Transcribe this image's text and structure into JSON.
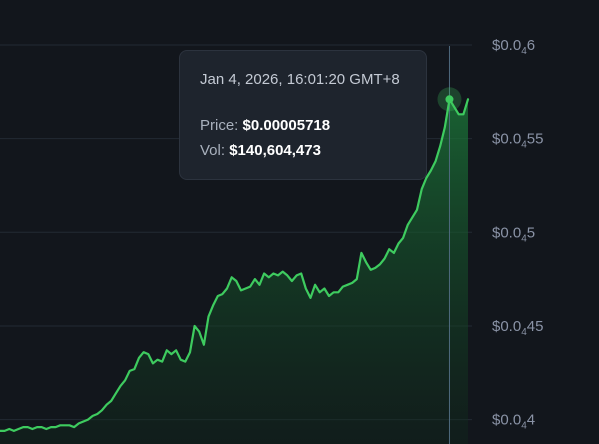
{
  "chart_data": {
    "type": "area",
    "y_tick_labels": [
      {
        "value": 6e-05,
        "base": "$0.0",
        "sub": "4",
        "rest": "6"
      },
      {
        "value": 5.5e-05,
        "base": "$0.0",
        "sub": "4",
        "rest": "55"
      },
      {
        "value": 5e-05,
        "base": "$0.0",
        "sub": "4",
        "rest": "5"
      },
      {
        "value": 4.5e-05,
        "base": "$0.0",
        "sub": "4",
        "rest": "45"
      },
      {
        "value": 4e-05,
        "base": "$0.0",
        "sub": "4",
        "rest": "4"
      }
    ],
    "ylim": [
      3.87e-05,
      6.24e-05
    ],
    "series": [
      {
        "values": [
          3.94e-05,
          3.94e-05,
          3.95e-05,
          3.94e-05,
          3.95e-05,
          3.96e-05,
          3.96e-05,
          3.95e-05,
          3.96e-05,
          3.96e-05,
          3.95e-05,
          3.96e-05,
          3.96e-05,
          3.97e-05,
          3.97e-05,
          3.97e-05,
          3.96e-05,
          3.98e-05,
          3.99e-05,
          4e-05,
          4.02e-05,
          4.03e-05,
          4.05e-05,
          4.08e-05,
          4.1e-05,
          4.14e-05,
          4.18e-05,
          4.21e-05,
          4.26e-05,
          4.27e-05,
          4.33e-05,
          4.36e-05,
          4.35e-05,
          4.3e-05,
          4.32e-05,
          4.31e-05,
          4.37e-05,
          4.35e-05,
          4.37e-05,
          4.32e-05,
          4.31e-05,
          4.36e-05,
          4.5e-05,
          4.47e-05,
          4.4e-05,
          4.55e-05,
          4.61e-05,
          4.66e-05,
          4.67e-05,
          4.7e-05,
          4.76e-05,
          4.74e-05,
          4.69e-05,
          4.7e-05,
          4.71e-05,
          4.75e-05,
          4.72e-05,
          4.78e-05,
          4.76e-05,
          4.78e-05,
          4.77e-05,
          4.79e-05,
          4.77e-05,
          4.74e-05,
          4.77e-05,
          4.78e-05,
          4.7e-05,
          4.65e-05,
          4.72e-05,
          4.68e-05,
          4.7e-05,
          4.66e-05,
          4.68e-05,
          4.68e-05,
          4.71e-05,
          4.72e-05,
          4.73e-05,
          4.75e-05,
          4.89e-05,
          4.84e-05,
          4.8e-05,
          4.81e-05,
          4.83e-05,
          4.86e-05,
          4.91e-05,
          4.89e-05,
          4.94e-05,
          4.97e-05,
          5.04e-05,
          5.08e-05,
          5.12e-05,
          5.23e-05,
          5.29e-05,
          5.33e-05,
          5.38e-05,
          5.46e-05,
          5.56e-05,
          5.71e-05,
          5.67e-05,
          5.63e-05,
          5.63e-05,
          5.71e-05
        ]
      }
    ],
    "highlight_index": 97,
    "grid": "horizontal",
    "colors": {
      "line": "#3ecb5f",
      "background": "#12161c",
      "grid": "#232a33",
      "crosshair": "#4f6a7d"
    }
  },
  "tooltip": {
    "date": "Jan 4, 2026, 16:01:20 GMT+8",
    "price_label": "Price:",
    "price_value": "$0.00005718",
    "vol_label": "Vol:",
    "vol_value": "$140,604,473"
  }
}
